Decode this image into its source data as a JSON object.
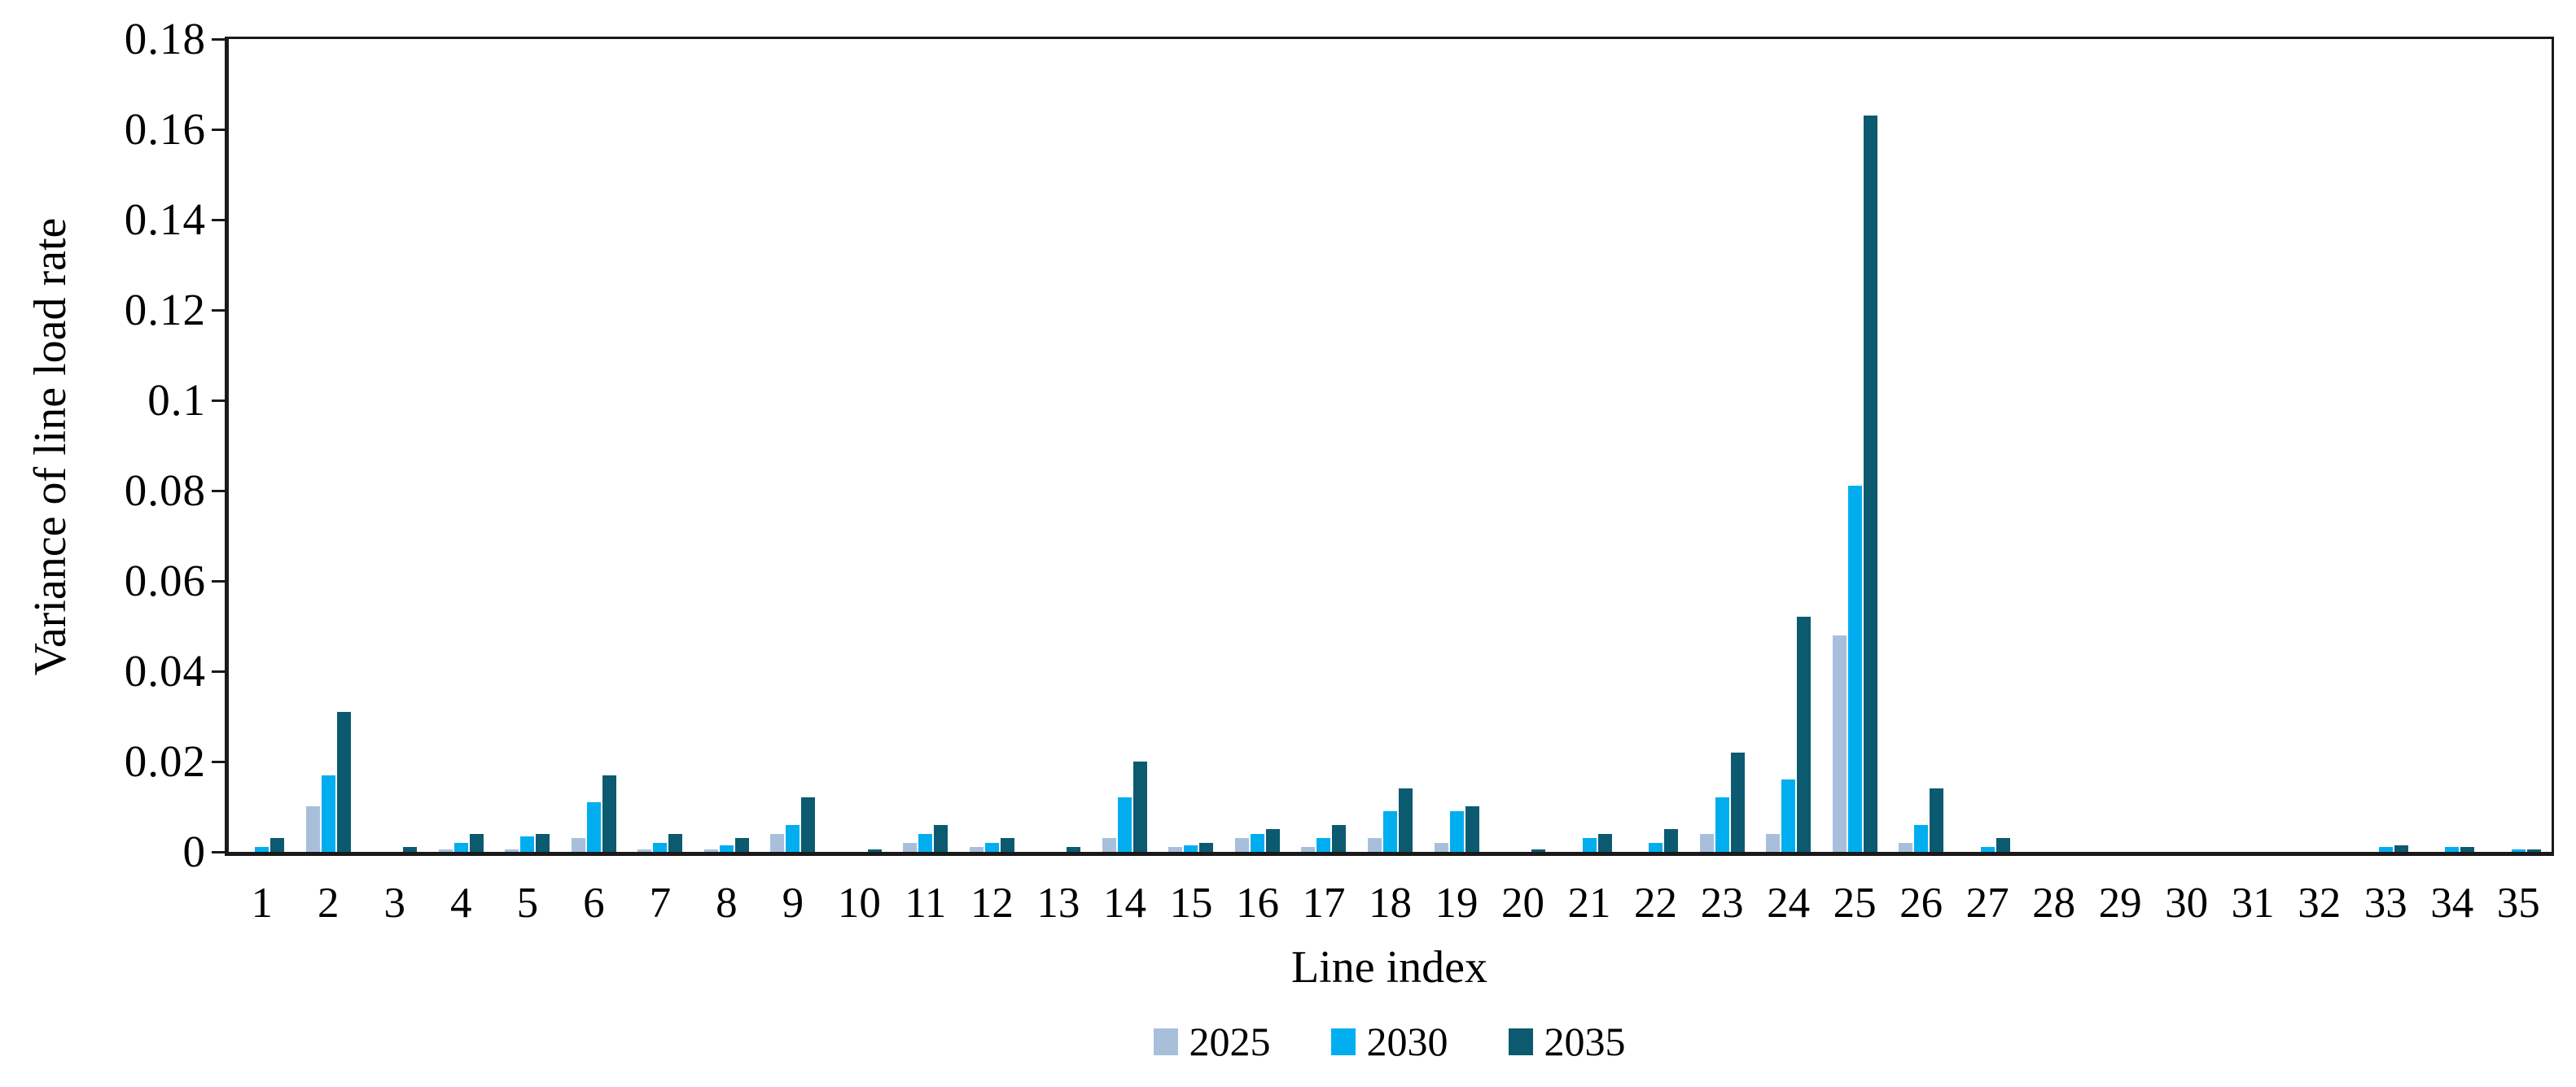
{
  "chart_data": {
    "type": "bar",
    "title": "",
    "xlabel": "Line index",
    "ylabel": "Variance of line load rate",
    "ylim": [
      0,
      0.18
    ],
    "ytick_step": 0.02,
    "ytick_labels": [
      "0",
      "0.02",
      "0.04",
      "0.06",
      "0.08",
      "0.1",
      "0.12",
      "0.14",
      "0.16",
      "0.18"
    ],
    "grid": false,
    "legend_position": "bottom",
    "categories": [
      1,
      2,
      3,
      4,
      5,
      6,
      7,
      8,
      9,
      10,
      11,
      12,
      13,
      14,
      15,
      16,
      17,
      18,
      19,
      20,
      21,
      22,
      23,
      24,
      25,
      26,
      27,
      28,
      29,
      30,
      31,
      32,
      33,
      34,
      35
    ],
    "series": [
      {
        "name": "2025",
        "color": "#A8BFDC",
        "values": [
          0,
          0.01,
          0,
          0.0005,
          0.0005,
          0.003,
          0.0005,
          0.0005,
          0.004,
          0,
          0.002,
          0.001,
          0,
          0.003,
          0.001,
          0.003,
          0.001,
          0.003,
          0.002,
          0,
          0,
          0,
          0.004,
          0.004,
          0.048,
          0.002,
          0,
          0,
          0,
          0,
          0,
          0,
          0,
          0,
          0
        ]
      },
      {
        "name": "2030",
        "color": "#00AEEF",
        "values": [
          0.001,
          0.017,
          0,
          0.002,
          0.0035,
          0.011,
          0.002,
          0.0015,
          0.006,
          0,
          0.004,
          0.002,
          0,
          0.012,
          0.0015,
          0.004,
          0.003,
          0.009,
          0.009,
          0,
          0.003,
          0.002,
          0.012,
          0.016,
          0.081,
          0.006,
          0.001,
          0,
          0,
          0,
          0,
          0,
          0.001,
          0.001,
          0.0005
        ]
      },
      {
        "name": "2035",
        "color": "#0C5A70",
        "values": [
          0.003,
          0.031,
          0.001,
          0.004,
          0.004,
          0.017,
          0.004,
          0.003,
          0.012,
          0.0005,
          0.006,
          0.003,
          0.001,
          0.02,
          0.002,
          0.005,
          0.006,
          0.014,
          0.01,
          0.0005,
          0.004,
          0.005,
          0.022,
          0.052,
          0.163,
          0.014,
          0.003,
          0,
          0,
          0,
          0,
          0,
          0.0015,
          0.001,
          0.0005
        ]
      }
    ]
  }
}
